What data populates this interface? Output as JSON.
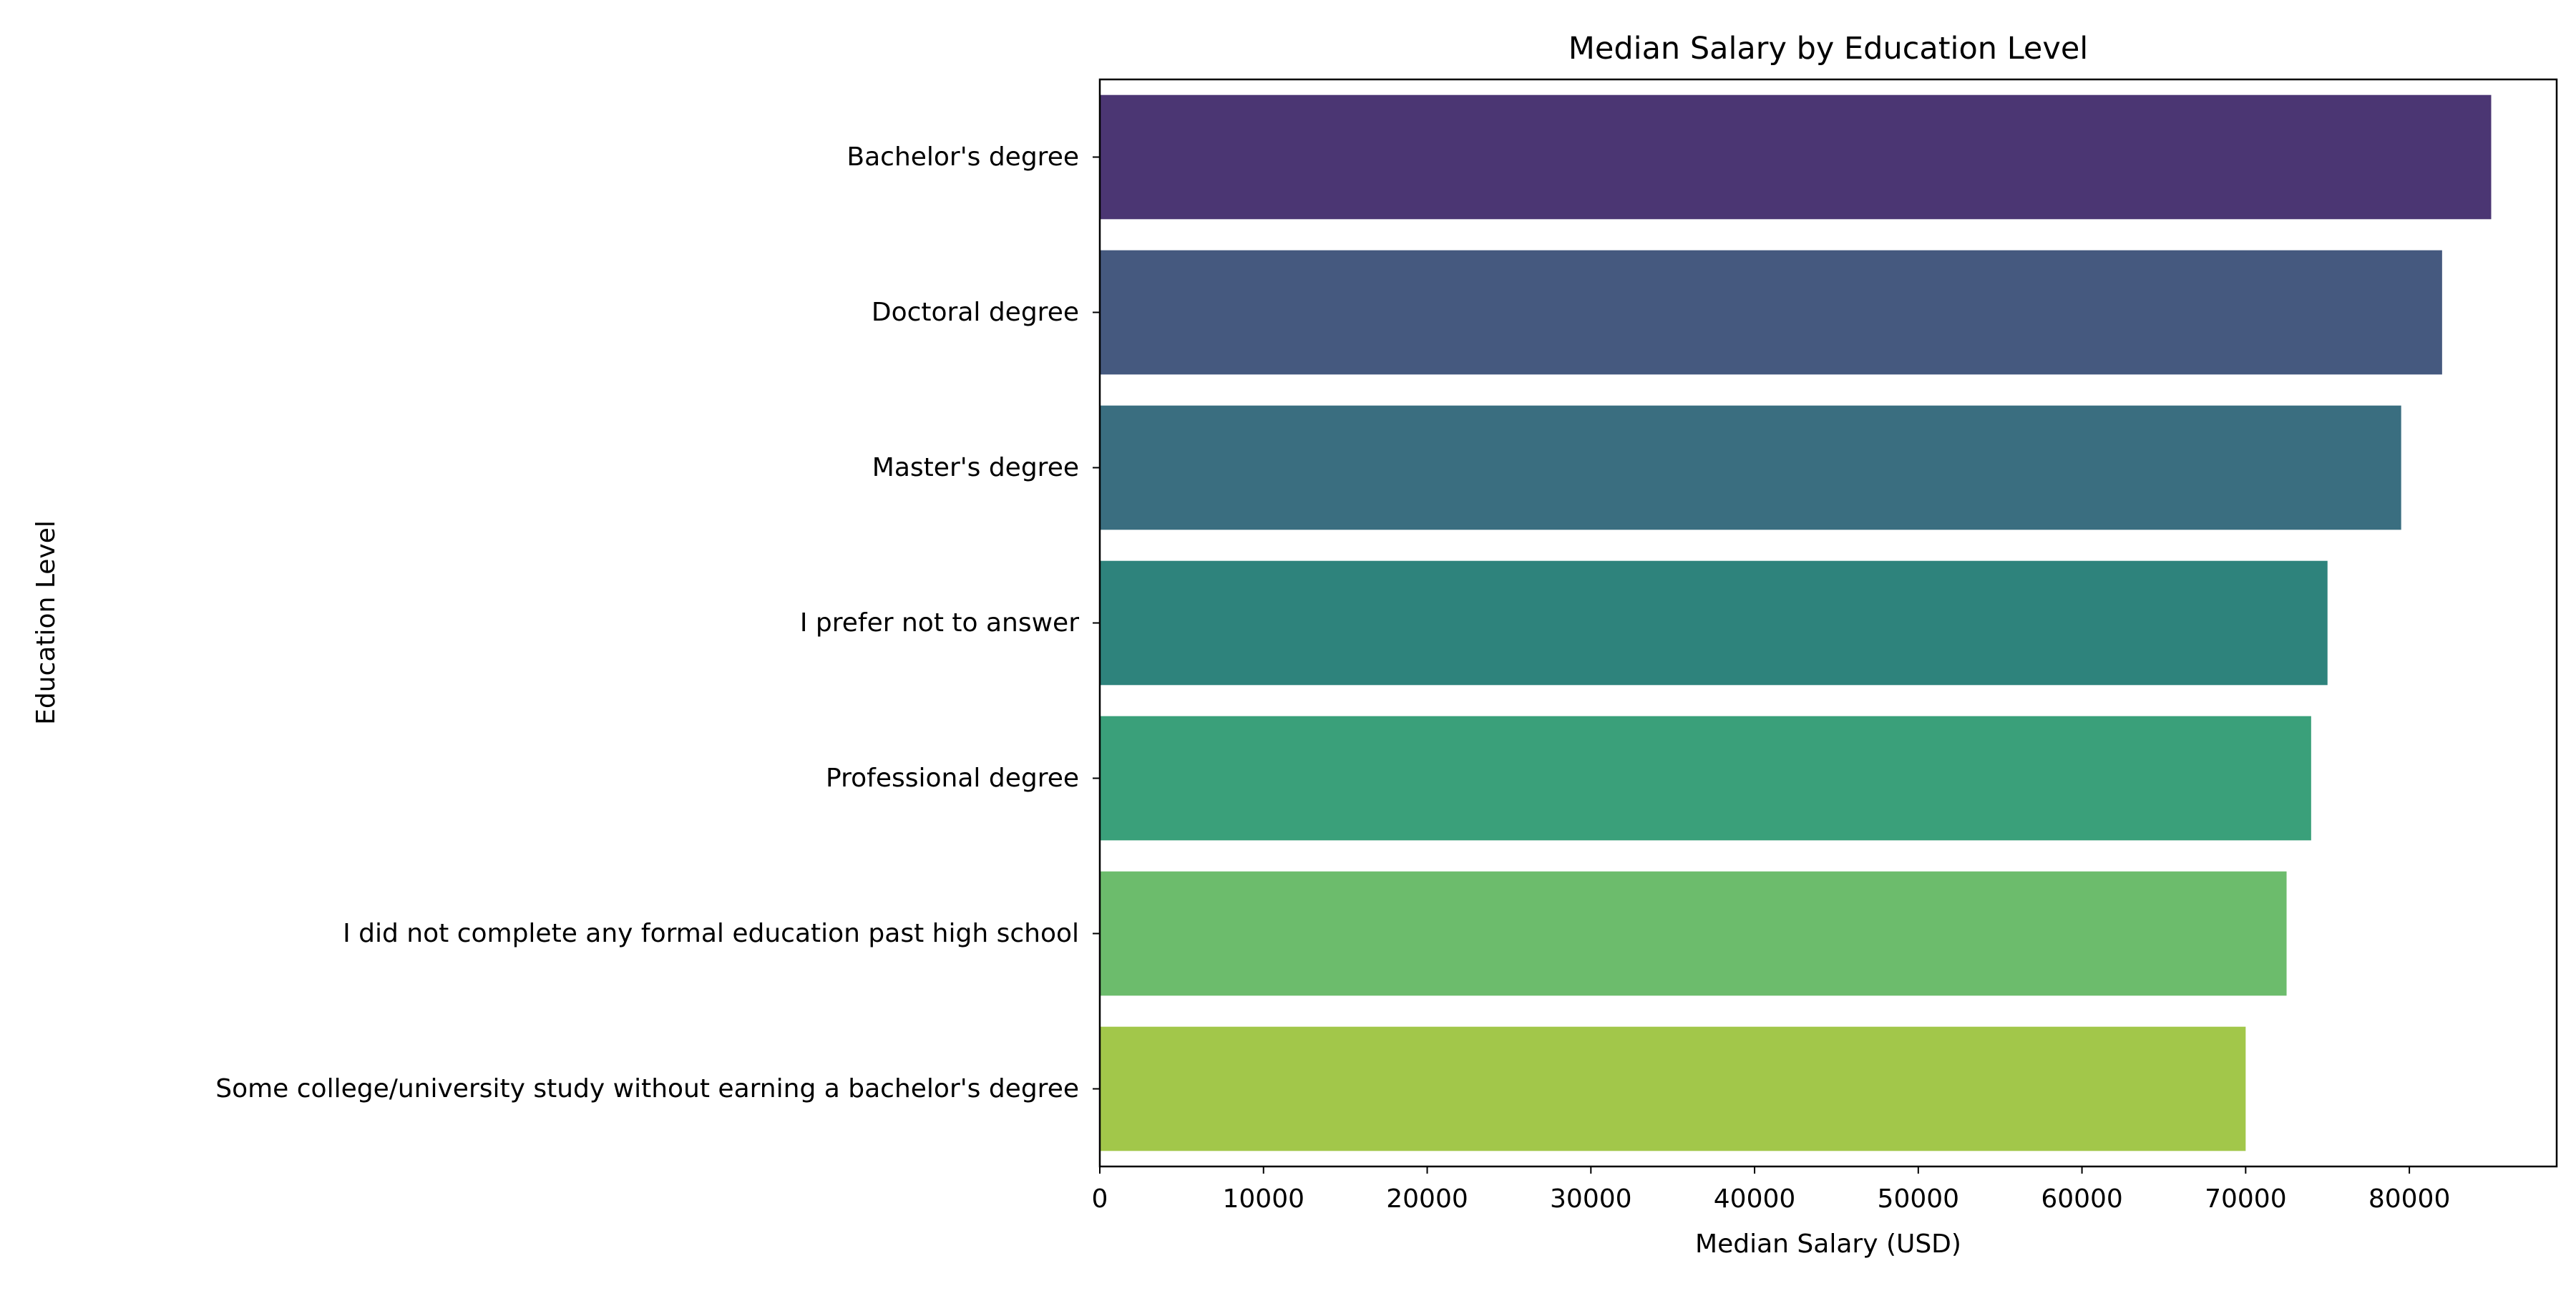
{
  "chart_data": {
    "type": "bar",
    "orientation": "horizontal",
    "title": "Median Salary by Education Level",
    "xlabel": "Median Salary (USD)",
    "ylabel": "Education Level",
    "xlim": [
      0,
      89000
    ],
    "x_ticks": [
      0,
      10000,
      20000,
      30000,
      40000,
      50000,
      60000,
      70000,
      80000
    ],
    "grid": false,
    "legend": "none",
    "categories": [
      "Bachelor's degree",
      "Doctoral degree",
      "Master's degree",
      "I prefer not to answer",
      "Professional degree",
      "I did not complete any formal education past high school",
      "Some college/university study without earning a bachelor's degree"
    ],
    "values": [
      85000,
      82000,
      79500,
      75000,
      74000,
      72500,
      70000
    ],
    "colors": [
      "#4b3673",
      "#45597f",
      "#3a6e80",
      "#2e837c",
      "#3aa07a",
      "#6cbc6c",
      "#a2c74a"
    ]
  }
}
